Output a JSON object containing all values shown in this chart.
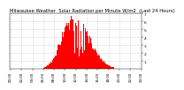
{
  "title": "Milwaukee Weather  Solar Radiation per Minute W/m2  (Last 24 Hours)",
  "title_fontsize": 3.8,
  "background_color": "#ffffff",
  "plot_bg_color": "#ffffff",
  "bar_color": "#ff0000",
  "bar_edge_color": "#ff0000",
  "ylim": [
    0,
    700
  ],
  "yticks": [
    100,
    200,
    300,
    400,
    500,
    600,
    700
  ],
  "ytick_labels": [
    "1",
    "2",
    "3",
    "4",
    "5",
    "6",
    "7"
  ],
  "ytick_fontsize": 3.2,
  "xtick_fontsize": 2.8,
  "grid_color": "#bbbbbb",
  "grid_style": "dotted",
  "num_bars": 1440,
  "sunrise_bar": 360,
  "sunset_bar": 1140,
  "peak_value": 680
}
